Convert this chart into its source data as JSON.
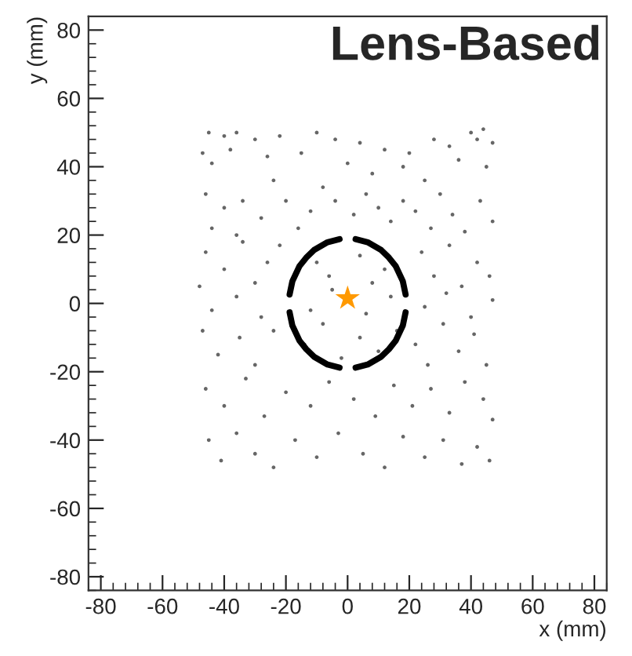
{
  "chart_data": {
    "type": "scatter",
    "title": "Lens-Based",
    "xlabel": "x (mm)",
    "ylabel": "y (mm)",
    "xlim": [
      -84,
      84
    ],
    "ylim": [
      -84,
      84
    ],
    "xticks": [
      -80,
      -60,
      -40,
      -20,
      0,
      20,
      40,
      60,
      80
    ],
    "yticks": [
      -80,
      -60,
      -40,
      -20,
      0,
      20,
      40,
      60,
      80
    ],
    "grid": false,
    "legend": false,
    "series": [
      {
        "marker": "circle",
        "color": "#666666",
        "x": [
          -45,
          -40,
          -36,
          -30,
          -22,
          -10,
          -4,
          4,
          12,
          18,
          28,
          33,
          40,
          42,
          44,
          47,
          -47,
          -44,
          -38,
          -26,
          -15,
          0,
          8,
          20,
          25,
          36,
          45,
          -46,
          -40,
          -34,
          -28,
          -20,
          -16,
          -8,
          -4,
          2,
          6,
          10,
          14,
          18,
          22,
          27,
          30,
          34,
          38,
          43,
          47,
          -44,
          -36,
          -24,
          -12,
          -46,
          -40,
          -34,
          -30,
          -26,
          -22,
          -10,
          -6,
          4,
          8,
          12,
          24,
          28,
          33,
          37,
          42,
          46,
          -48,
          -44,
          -36,
          -28,
          -12,
          -5,
          6,
          14,
          25,
          32,
          40,
          47,
          -47,
          -42,
          -35,
          -30,
          -24,
          -14,
          -8,
          -2,
          4,
          10,
          16,
          22,
          26,
          31,
          36,
          41,
          45,
          -46,
          -40,
          -33,
          -27,
          -20,
          -12,
          -6,
          2,
          9,
          15,
          21,
          27,
          33,
          38,
          44,
          47,
          -45,
          -41,
          -36,
          -30,
          -24,
          -17,
          -10,
          -3,
          5,
          12,
          18,
          25,
          31,
          37,
          42,
          46
        ],
        "values": [
          50,
          49,
          50,
          48,
          49,
          50,
          48,
          47,
          45,
          40,
          48,
          46,
          50,
          48,
          51,
          47,
          44,
          41,
          45,
          43,
          44,
          41,
          38,
          44,
          36,
          42,
          40,
          32,
          28,
          30,
          25,
          30,
          22,
          34,
          30,
          26,
          32,
          28,
          24,
          30,
          27,
          22,
          32,
          26,
          21,
          30,
          24,
          22,
          20,
          36,
          27,
          15,
          10,
          18,
          6,
          12,
          17,
          12,
          8,
          14,
          6,
          10,
          15,
          8,
          17,
          5,
          12,
          8,
          5,
          -2,
          2,
          -4,
          -2,
          4,
          -3,
          2,
          -1,
          3,
          -4,
          1,
          -8,
          -15,
          -10,
          -18,
          -8,
          -12,
          -6,
          -16,
          -10,
          -14,
          -8,
          -12,
          -18,
          -6,
          -14,
          -9,
          -18,
          -25,
          -30,
          -22,
          -33,
          -26,
          -30,
          -23,
          -28,
          -33,
          -24,
          -30,
          -25,
          -32,
          -23,
          -28,
          -34,
          -40,
          -46,
          -38,
          -44,
          -48,
          -40,
          -45,
          -38,
          -44,
          -48,
          -39,
          -45,
          -40,
          -47,
          -42,
          -46
        ]
      },
      {
        "type": "line",
        "color": "#000000",
        "x": [
          18.8,
          17.9,
          15.6,
          13.4,
          10.9,
          6.5,
          2.6
        ],
        "values": [
          2.6,
          6.5,
          10.9,
          13.4,
          15.6,
          17.9,
          18.8
        ]
      },
      {
        "type": "line",
        "color": "#000000",
        "x": [
          -18.8,
          -17.9,
          -15.6,
          -13.4,
          -10.9,
          -6.5,
          -2.6
        ],
        "values": [
          2.6,
          6.5,
          10.9,
          13.4,
          15.6,
          17.9,
          18.8
        ]
      },
      {
        "type": "line",
        "color": "#000000",
        "x": [
          -18.8,
          -17.9,
          -15.6,
          -13.4,
          -10.9,
          -6.5,
          -2.6
        ],
        "values": [
          -2.6,
          -6.5,
          -10.9,
          -13.4,
          -15.6,
          -17.9,
          -18.8
        ]
      },
      {
        "type": "line",
        "color": "#000000",
        "x": [
          18.8,
          17.9,
          15.6,
          13.4,
          10.9,
          6.5,
          2.6
        ],
        "values": [
          -2.6,
          -6.5,
          -10.9,
          -13.4,
          -15.6,
          -17.9,
          -18.8
        ]
      },
      {
        "marker": "star",
        "color": "#ff9900",
        "x": [
          0
        ],
        "values": [
          1.5
        ]
      }
    ]
  }
}
